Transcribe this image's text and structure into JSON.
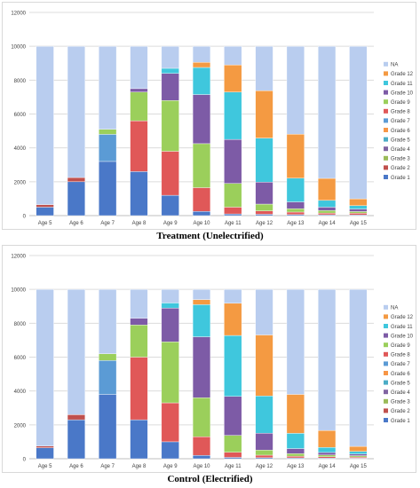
{
  "chart_data": [
    {
      "type": "bar",
      "stacked": true,
      "title": "",
      "caption": "Treatment (Unelectrified)",
      "xlabel": "",
      "ylabel": "",
      "ylim": [
        0,
        12000
      ],
      "yticks": [
        0,
        2000,
        4000,
        6000,
        8000,
        10000,
        12000
      ],
      "grid": true,
      "legend_position": "right",
      "categories": [
        "Age 5",
        "Age 6",
        "Age 7",
        "Age 8",
        "Age 9",
        "Age 10",
        "Age 11",
        "Age 12",
        "Age 13",
        "Age 14",
        "Age 15"
      ],
      "series": [
        {
          "name": "Grade 1",
          "color": "#4a78c8",
          "values": [
            500,
            2000,
            3200,
            2600,
            1200,
            250,
            100,
            80,
            60,
            50,
            40
          ]
        },
        {
          "name": "Grade 2",
          "color": "#c0504d",
          "values": [
            150,
            250,
            0,
            0,
            0,
            0,
            0,
            0,
            0,
            0,
            0
          ]
        },
        {
          "name": "Grade 3",
          "color": "#9bbb59",
          "values": [
            0,
            0,
            0,
            0,
            0,
            0,
            0,
            0,
            0,
            0,
            0
          ]
        },
        {
          "name": "Grade 4",
          "color": "#8064a2",
          "values": [
            0,
            0,
            0,
            0,
            0,
            0,
            0,
            0,
            0,
            0,
            0
          ]
        },
        {
          "name": "Grade 5",
          "color": "#4bacc6",
          "values": [
            0,
            0,
            0,
            0,
            0,
            0,
            0,
            0,
            0,
            0,
            0
          ]
        },
        {
          "name": "Grade 6",
          "color": "#f79646",
          "values": [
            0,
            0,
            0,
            0,
            0,
            0,
            0,
            0,
            0,
            0,
            0
          ]
        },
        {
          "name": "Grade 7",
          "color": "#5b9bd5",
          "values": [
            0,
            0,
            1600,
            0,
            0,
            0,
            0,
            0,
            0,
            0,
            0
          ]
        },
        {
          "name": "Grade 8",
          "color": "#e05858",
          "values": [
            0,
            0,
            0,
            3000,
            2600,
            1400,
            400,
            200,
            150,
            100,
            100
          ]
        },
        {
          "name": "Grade 9",
          "color": "#9bcf5b",
          "values": [
            0,
            0,
            300,
            1700,
            3000,
            2600,
            1400,
            400,
            200,
            150,
            100
          ]
        },
        {
          "name": "Grade 10",
          "color": "#7d5ba6",
          "values": [
            0,
            0,
            0,
            200,
            1600,
            2900,
            2600,
            1300,
            400,
            200,
            150
          ]
        },
        {
          "name": "Grade 11",
          "color": "#3fc7dd",
          "values": [
            0,
            0,
            0,
            0,
            300,
            1600,
            2800,
            2600,
            1400,
            400,
            200
          ]
        },
        {
          "name": "Grade 12",
          "color": "#f49a42",
          "values": [
            0,
            0,
            0,
            0,
            0,
            300,
            1600,
            2800,
            2600,
            1300,
            400
          ]
        },
        {
          "name": "NA",
          "color": "#b9cdef",
          "values": [
            9350,
            7750,
            4900,
            2500,
            1300,
            950,
            1100,
            2620,
            5190,
            7800,
            9010
          ]
        }
      ]
    },
    {
      "type": "bar",
      "stacked": true,
      "title": "",
      "caption": "Control (Electrified)",
      "xlabel": "",
      "ylabel": "",
      "ylim": [
        0,
        12000
      ],
      "yticks": [
        0,
        2000,
        4000,
        6000,
        8000,
        10000,
        12000
      ],
      "grid": true,
      "legend_position": "right",
      "categories": [
        "Age 5",
        "Age 6",
        "Age 7",
        "Age 8",
        "Age 9",
        "Age 10",
        "Age 11",
        "Age 12",
        "Age 13",
        "Age 14",
        "Age 15"
      ],
      "series": [
        {
          "name": "Grade 1",
          "color": "#4a78c8",
          "values": [
            650,
            2300,
            3800,
            2300,
            1000,
            200,
            80,
            60,
            50,
            40,
            30
          ]
        },
        {
          "name": "Grade 2",
          "color": "#c0504d",
          "values": [
            100,
            300,
            0,
            0,
            0,
            0,
            0,
            0,
            0,
            0,
            0
          ]
        },
        {
          "name": "Grade 3",
          "color": "#9bbb59",
          "values": [
            0,
            0,
            0,
            0,
            0,
            0,
            0,
            0,
            0,
            0,
            0
          ]
        },
        {
          "name": "Grade 4",
          "color": "#8064a2",
          "values": [
            0,
            0,
            0,
            0,
            0,
            0,
            0,
            0,
            0,
            0,
            0
          ]
        },
        {
          "name": "Grade 5",
          "color": "#4bacc6",
          "values": [
            0,
            0,
            0,
            0,
            0,
            0,
            0,
            0,
            0,
            0,
            0
          ]
        },
        {
          "name": "Grade 6",
          "color": "#f79646",
          "values": [
            0,
            0,
            0,
            0,
            0,
            0,
            0,
            0,
            0,
            0,
            0
          ]
        },
        {
          "name": "Grade 7",
          "color": "#5b9bd5",
          "values": [
            0,
            0,
            2000,
            0,
            0,
            0,
            0,
            0,
            0,
            0,
            0
          ]
        },
        {
          "name": "Grade 8",
          "color": "#e05858",
          "values": [
            0,
            0,
            0,
            3700,
            2300,
            1100,
            300,
            150,
            100,
            80,
            70
          ]
        },
        {
          "name": "Grade 9",
          "color": "#9bcf5b",
          "values": [
            0,
            0,
            400,
            1900,
            3600,
            2300,
            1000,
            300,
            150,
            100,
            80
          ]
        },
        {
          "name": "Grade 10",
          "color": "#7d5ba6",
          "values": [
            0,
            0,
            0,
            400,
            2000,
            3600,
            2300,
            1000,
            300,
            150,
            100
          ]
        },
        {
          "name": "Grade 11",
          "color": "#3fc7dd",
          "values": [
            0,
            0,
            0,
            0,
            300,
            1900,
            3600,
            2200,
            900,
            300,
            150
          ]
        },
        {
          "name": "Grade 12",
          "color": "#f49a42",
          "values": [
            0,
            0,
            0,
            0,
            0,
            300,
            1900,
            3600,
            2300,
            1000,
            300
          ]
        },
        {
          "name": "NA",
          "color": "#b9cdef",
          "values": [
            9250,
            7400,
            3800,
            1700,
            800,
            600,
            820,
            2690,
            6200,
            8330,
            9270
          ]
        }
      ]
    }
  ]
}
